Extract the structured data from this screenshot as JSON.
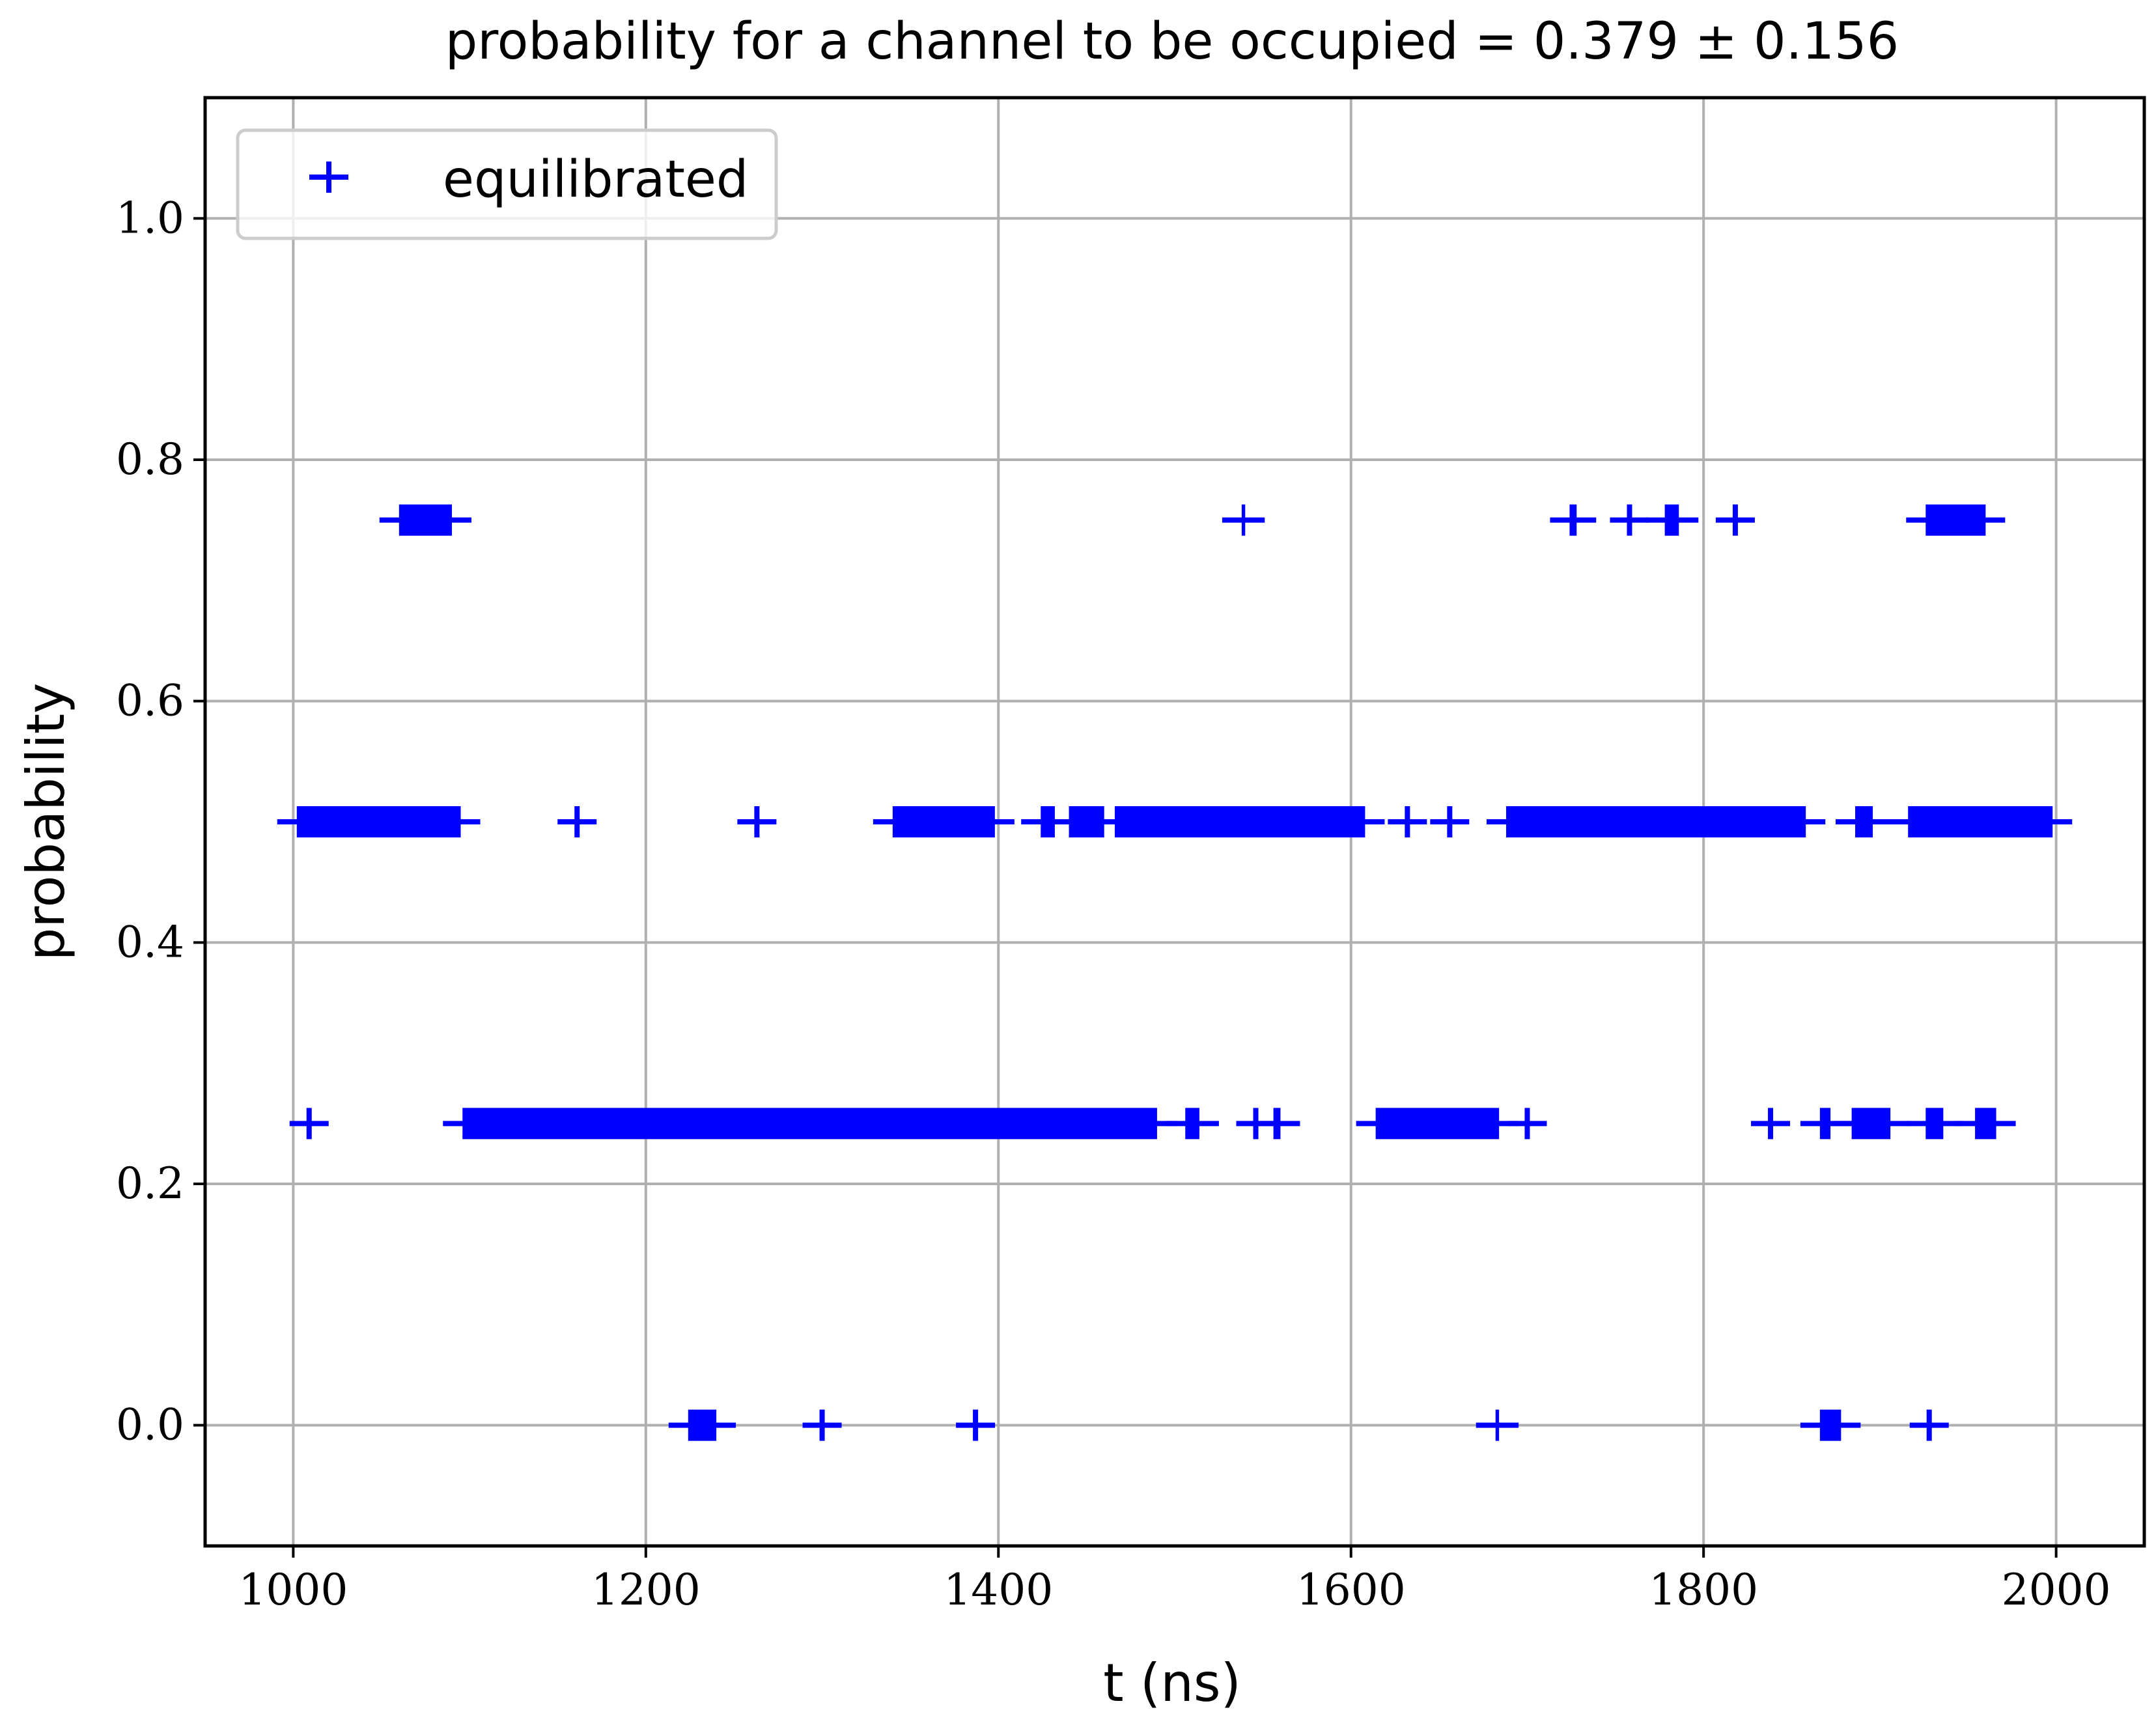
{
  "chart_data": {
    "type": "scatter",
    "title": "probability for a channel to be occupied = 0.379 ± 0.156",
    "xlabel": "t (ns)",
    "ylabel": "probability",
    "xlim": [
      950,
      2050
    ],
    "ylim": [
      -0.1,
      1.1
    ],
    "x_ticks": [
      1000,
      1200,
      1400,
      1600,
      1800,
      2000
    ],
    "x_tick_labels": [
      "1000",
      "1200",
      "1400",
      "1600",
      "1800",
      "2000"
    ],
    "y_ticks": [
      0.0,
      0.2,
      0.4,
      0.6,
      0.8,
      1.0
    ],
    "y_tick_labels": [
      "0.0",
      "0.2",
      "0.4",
      "0.6",
      "0.8",
      "1.0"
    ],
    "grid": true,
    "legend": "top-left",
    "marker": "plus",
    "color": "#0000ff",
    "series": [
      {
        "name": "equilibrated",
        "runs": [
          {
            "y": 0.75,
            "x_start": 1060,
            "x_end": 1090
          },
          {
            "y": 0.75,
            "x_start": 1538,
            "x_end": 1540
          },
          {
            "y": 0.75,
            "x_start": 1724,
            "x_end": 1728
          },
          {
            "y": 0.75,
            "x_start": 1758,
            "x_end": 1758
          },
          {
            "y": 0.75,
            "x_start": 1778,
            "x_end": 1786
          },
          {
            "y": 0.75,
            "x_start": 1818,
            "x_end": 1818
          },
          {
            "y": 0.75,
            "x_start": 1926,
            "x_end": 1960
          },
          {
            "y": 0.5,
            "x_start": 1002,
            "x_end": 1095
          },
          {
            "y": 0.5,
            "x_start": 1161,
            "x_end": 1161
          },
          {
            "y": 0.5,
            "x_start": 1263,
            "x_end": 1263
          },
          {
            "y": 0.5,
            "x_start": 1340,
            "x_end": 1398
          },
          {
            "y": 0.5,
            "x_start": 1424,
            "x_end": 1432
          },
          {
            "y": 0.5,
            "x_start": 1440,
            "x_end": 1460
          },
          {
            "y": 0.5,
            "x_start": 1466,
            "x_end": 1608
          },
          {
            "y": 0.5,
            "x_start": 1632,
            "x_end": 1632
          },
          {
            "y": 0.5,
            "x_start": 1656,
            "x_end": 1656
          },
          {
            "y": 0.5,
            "x_start": 1688,
            "x_end": 1858
          },
          {
            "y": 0.5,
            "x_start": 1886,
            "x_end": 1896
          },
          {
            "y": 0.5,
            "x_start": 1916,
            "x_end": 1998
          },
          {
            "y": 0.25,
            "x_start": 1009,
            "x_end": 1009
          },
          {
            "y": 0.25,
            "x_start": 1096,
            "x_end": 1490
          },
          {
            "y": 0.25,
            "x_start": 1506,
            "x_end": 1514
          },
          {
            "y": 0.25,
            "x_start": 1546,
            "x_end": 1546
          },
          {
            "y": 0.25,
            "x_start": 1556,
            "x_end": 1560
          },
          {
            "y": 0.25,
            "x_start": 1614,
            "x_end": 1684
          },
          {
            "y": 0.25,
            "x_start": 1700,
            "x_end": 1700
          },
          {
            "y": 0.25,
            "x_start": 1838,
            "x_end": 1838
          },
          {
            "y": 0.25,
            "x_start": 1866,
            "x_end": 1872
          },
          {
            "y": 0.25,
            "x_start": 1884,
            "x_end": 1906
          },
          {
            "y": 0.25,
            "x_start": 1926,
            "x_end": 1936
          },
          {
            "y": 0.25,
            "x_start": 1954,
            "x_end": 1966
          },
          {
            "y": 0.0,
            "x_start": 1224,
            "x_end": 1240
          },
          {
            "y": 0.0,
            "x_start": 1300,
            "x_end": 1300
          },
          {
            "y": 0.0,
            "x_start": 1387,
            "x_end": 1387
          },
          {
            "y": 0.0,
            "x_start": 1682,
            "x_end": 1684
          },
          {
            "y": 0.0,
            "x_start": 1866,
            "x_end": 1878
          },
          {
            "y": 0.0,
            "x_start": 1928,
            "x_end": 1928
          }
        ]
      }
    ]
  }
}
